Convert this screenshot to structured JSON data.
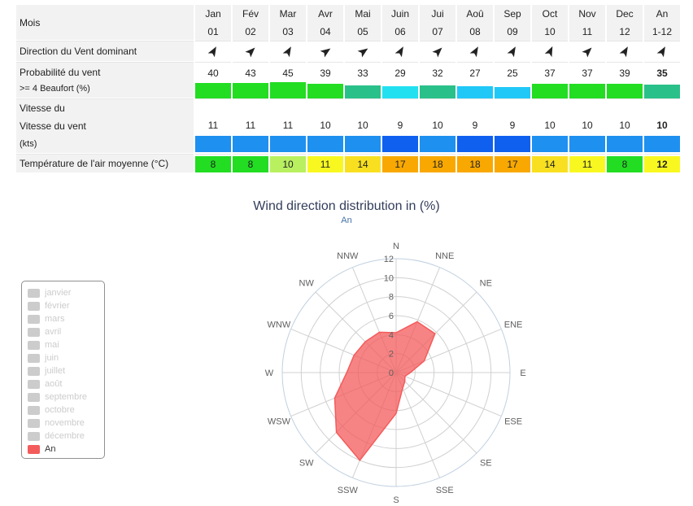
{
  "table": {
    "header_label": "Mois",
    "months": [
      "Jan",
      "Fév",
      "Mar",
      "Avr",
      "Mai",
      "Juin",
      "Jui",
      "Aoû",
      "Sep",
      "Oct",
      "Nov",
      "Dec",
      "An"
    ],
    "month_nums": [
      "01",
      "02",
      "03",
      "04",
      "05",
      "06",
      "07",
      "08",
      "09",
      "10",
      "11",
      "12",
      "1-12"
    ],
    "direction_label": "Direction du Vent dominant",
    "direction_degrees": [
      210,
      225,
      210,
      235,
      235,
      210,
      225,
      210,
      210,
      205,
      225,
      210,
      210
    ],
    "probability_label_1": "Probabilité du vent",
    "probability_label_2": ">= 4 Beaufort (%)",
    "probability": [
      "40",
      "43",
      "45",
      "39",
      "33",
      "29",
      "32",
      "27",
      "25",
      "37",
      "37",
      "39",
      "35"
    ],
    "probability_colors": [
      "#22dd22",
      "#22dd22",
      "#22dd22",
      "#22dd22",
      "#2ac08a",
      "#22e0f0",
      "#2ac08a",
      "#20c8f8",
      "#20c8f8",
      "#22dd22",
      "#22dd22",
      "#22dd22",
      "#2ac08a"
    ],
    "speed_label_1": "Vitesse du",
    "speed_label_2": "Vitesse du vent",
    "speed_label_3": "(kts)",
    "speed": [
      "11",
      "11",
      "11",
      "10",
      "10",
      "9",
      "10",
      "9",
      "9",
      "10",
      "10",
      "10",
      "10"
    ],
    "speed_colors": [
      "#1e90f0",
      "#1e90f0",
      "#1e90f0",
      "#1e90f0",
      "#1e90f0",
      "#1060f0",
      "#1e90f0",
      "#1060f0",
      "#1060f0",
      "#1e90f0",
      "#1e90f0",
      "#1e90f0",
      "#1e90f0"
    ],
    "temp_label": "Température de l'air moyenne (°C)",
    "temperature": [
      "8",
      "8",
      "10",
      "11",
      "14",
      "17",
      "18",
      "18",
      "17",
      "14",
      "11",
      "8",
      "12"
    ],
    "temperature_colors": [
      "#22dd22",
      "#22dd22",
      "#b8f060",
      "#f8f820",
      "#f8e020",
      "#f8a800",
      "#f8a800",
      "#f8a800",
      "#f8a800",
      "#f8e020",
      "#f8f820",
      "#22dd22",
      "#f8f820"
    ]
  },
  "legend": {
    "items": [
      "janvier",
      "février",
      "mars",
      "avril",
      "mai",
      "juin",
      "juillet",
      "août",
      "septembre",
      "octobre",
      "novembre",
      "décembre",
      "An"
    ],
    "active": "An"
  },
  "chart_data": {
    "type": "radar",
    "title": "Wind direction distribution in (%)",
    "subtitle": "An",
    "directions": [
      "N",
      "NNE",
      "NE",
      "ENE",
      "E",
      "ESE",
      "SE",
      "SSE",
      "S",
      "SSW",
      "SW",
      "WSW",
      "W",
      "WNW",
      "NW",
      "NNW"
    ],
    "radial_ticks": [
      "0",
      "2",
      "4",
      "6",
      "8",
      "10",
      "12"
    ],
    "rmax": 12,
    "series": [
      {
        "name": "An",
        "values": [
          4.2,
          5.8,
          5.8,
          3.2,
          1.5,
          1.0,
          1.3,
          1.8,
          4.3,
          10.0,
          8.9,
          7.0,
          5.2,
          4.8,
          4.6,
          4.6
        ],
        "color": "#f45b5b"
      }
    ]
  }
}
